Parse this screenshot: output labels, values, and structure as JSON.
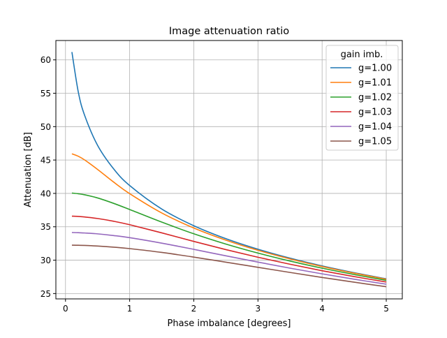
{
  "chart_data": {
    "type": "line",
    "title": "Image attenuation ratio",
    "xlabel": "Phase imbalance [degrees]",
    "ylabel": "Attenuation [dB]",
    "xlim": [
      -0.15,
      5.25
    ],
    "ylim": [
      24.2,
      62.9
    ],
    "xticks": [
      0,
      1,
      2,
      3,
      4,
      5
    ],
    "xtick_labels": [
      "0",
      "1",
      "2",
      "3",
      "4",
      "5"
    ],
    "yticks": [
      25,
      30,
      35,
      40,
      45,
      50,
      55,
      60
    ],
    "ytick_labels": [
      "25",
      "30",
      "35",
      "40",
      "45",
      "50",
      "55",
      "60"
    ],
    "grid": true,
    "legend": {
      "title": "gain imb.",
      "placement": "top-right"
    },
    "x": [
      0.1,
      0.2,
      0.3,
      0.5,
      0.75,
      1,
      1.5,
      2,
      2.5,
      3,
      3.5,
      4,
      4.5,
      5
    ],
    "series": [
      {
        "name": "g=1.00",
        "color": "#1f77b4",
        "values": [
          61.18,
          55.16,
          51.64,
          47.2,
          43.68,
          41.18,
          37.66,
          35.16,
          33.22,
          31.64,
          30.3,
          29.14,
          28.12,
          27.2
        ]
      },
      {
        "name": "g=1.01",
        "color": "#ff7f0e",
        "values": [
          45.93,
          45.56,
          45.0,
          43.59,
          41.7,
          39.96,
          37.07,
          34.82,
          33.0,
          31.48,
          30.19,
          29.05,
          28.05,
          27.14
        ]
      },
      {
        "name": "g=1.02",
        "color": "#2ca02c",
        "values": [
          40.05,
          39.95,
          39.79,
          39.32,
          38.51,
          37.59,
          35.7,
          33.95,
          32.41,
          31.06,
          29.87,
          28.8,
          27.85,
          26.98
        ]
      },
      {
        "name": "g=1.03",
        "color": "#d62728",
        "values": [
          36.59,
          36.55,
          36.47,
          36.24,
          35.83,
          35.31,
          34.09,
          32.81,
          31.58,
          30.44,
          29.39,
          28.42,
          27.54,
          26.73
        ]
      },
      {
        "name": "g=1.04",
        "color": "#9467bd",
        "values": [
          34.14,
          34.12,
          34.07,
          33.94,
          33.69,
          33.37,
          32.55,
          31.62,
          30.65,
          29.71,
          28.8,
          27.95,
          27.15,
          26.4
        ]
      },
      {
        "name": "g=1.05",
        "color": "#8c564b",
        "values": [
          32.25,
          32.23,
          32.21,
          32.12,
          31.95,
          31.73,
          31.16,
          30.46,
          29.7,
          28.93,
          28.16,
          27.41,
          26.7,
          26.02
        ]
      }
    ]
  }
}
